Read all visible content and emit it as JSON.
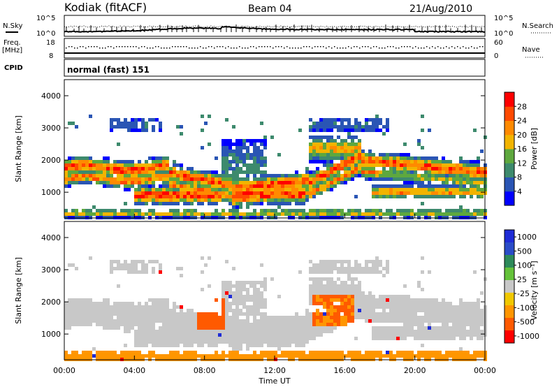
{
  "header": {
    "station": "Kodiak (fitACF)",
    "beam": "Beam 04",
    "date": "21/Aug/2010"
  },
  "top_panels": {
    "noise": {
      "left_label": "N.Sky",
      "right_label": "N.Search",
      "left_ticks": [
        "10^5",
        "10^0"
      ],
      "right_ticks": [
        "10^5",
        "10^0"
      ]
    },
    "freq": {
      "left_label_1": "Freq.",
      "left_label_2": "[MHz]",
      "right_label": "Nave",
      "left_ticks": [
        "18",
        "8"
      ],
      "right_ticks": [
        "60",
        "0"
      ]
    },
    "cpid": {
      "label": "CPID",
      "text": "normal (fast) 151"
    }
  },
  "colors": {
    "power": [
      "#0000ff",
      "#2a55b4",
      "#3d8a6d",
      "#5ea83e",
      "#f2b400",
      "#ff8a00",
      "#ff4a00",
      "#ff0000"
    ],
    "velocity": [
      "#ff0000",
      "#ff5a00",
      "#ff9600",
      "#f0c800",
      "#c8c8c8",
      "#64c23a",
      "#2d8a5a",
      "#2a4cc8",
      "#1e2bd6"
    ]
  },
  "chart_data": [
    {
      "type": "heatmap",
      "title": "",
      "xlabel": "",
      "ylabel": "Slant Range [km]",
      "xlim": [
        0,
        24
      ],
      "ylim": [
        200,
        4500
      ],
      "y_ticks": [
        "1000",
        "2000",
        "3000",
        "4000"
      ],
      "colorbar": {
        "label": "Power [dB]",
        "ticks": [
          "4",
          "8",
          "12",
          "16",
          "20",
          "24",
          "28"
        ]
      }
    },
    {
      "type": "heatmap",
      "title": "",
      "xlabel": "Time UT",
      "ylabel": "Slant Range [km]",
      "xlim": [
        0,
        24
      ],
      "ylim": [
        200,
        4500
      ],
      "x_ticks": [
        "00:00",
        "04:00",
        "08:00",
        "12:00",
        "16:00",
        "20:00",
        "00:00"
      ],
      "y_ticks": [
        "1000",
        "2000",
        "3000",
        "4000"
      ],
      "colorbar": {
        "label": "Velocity [m s⁻¹]",
        "ticks": [
          "1000",
          "500",
          "100",
          "25",
          "-25",
          "-100",
          "-500",
          "-1000"
        ]
      }
    }
  ]
}
